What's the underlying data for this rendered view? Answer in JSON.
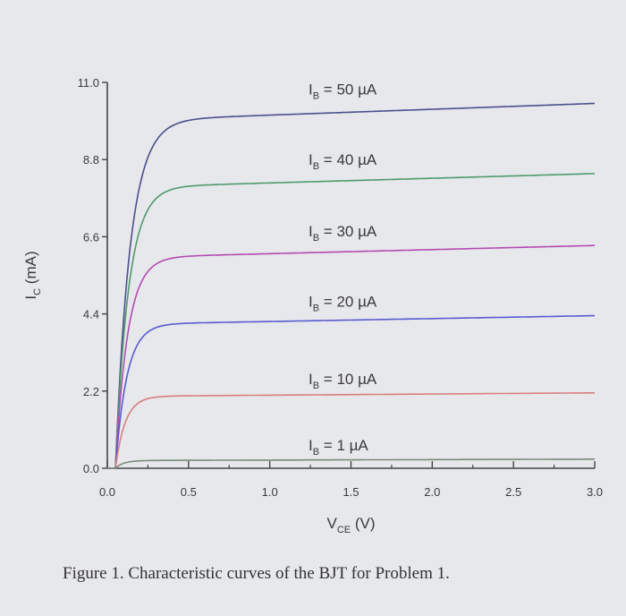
{
  "chart_data": {
    "type": "line",
    "xlabel": "V",
    "xlabel_sub": "CE",
    "xlabel_unit": "(V)",
    "ylabel": "I",
    "ylabel_sub": "C",
    "ylabel_unit": "(mA)",
    "xlim": [
      0.0,
      3.0
    ],
    "ylim": [
      0.0,
      11.0
    ],
    "x_ticks": [
      "0.0",
      "0.5",
      "1.0",
      "1.5",
      "2.0",
      "2.5",
      "3.0"
    ],
    "y_ticks": [
      "0.0",
      "2.2",
      "4.4",
      "6.6",
      "8.8",
      "11.0"
    ],
    "grid": false,
    "series": [
      {
        "name": "I_B = 50 µA",
        "label_main": "I",
        "label_sub": "B",
        "label_value": " = 50 µA",
        "color": "#4a4f8c",
        "sat": 9.9,
        "end": 10.4,
        "knee": 0.09
      },
      {
        "name": "I_B = 40 µA",
        "label_main": "I",
        "label_sub": "B",
        "label_value": " = 40 µA",
        "color": "#4f9a6c",
        "sat": 8.0,
        "end": 8.4,
        "knee": 0.08
      },
      {
        "name": "I_B = 30 µA",
        "label_main": "I",
        "label_sub": "B",
        "label_value": " = 30 µA",
        "color": "#b24bb0",
        "sat": 6.0,
        "end": 6.35,
        "knee": 0.075
      },
      {
        "name": "I_B = 20 µA",
        "label_main": "I",
        "label_sub": "B",
        "label_value": " = 20 µA",
        "color": "#5a5ad0",
        "sat": 4.1,
        "end": 4.35,
        "knee": 0.07
      },
      {
        "name": "I_B = 10 µA",
        "label_main": "I",
        "label_sub": "B",
        "label_value": " = 10 µA",
        "color": "#d87f7f",
        "sat": 2.05,
        "end": 2.15,
        "knee": 0.06
      },
      {
        "name": "I_B = 1 µA",
        "label_main": "I",
        "label_sub": "B",
        "label_value": " = 1 µA",
        "color": "#7a8a7a",
        "sat": 0.22,
        "end": 0.26,
        "knee": 0.05
      }
    ]
  },
  "caption": "Figure 1.  Characteristic curves of the BJT for Problem 1."
}
